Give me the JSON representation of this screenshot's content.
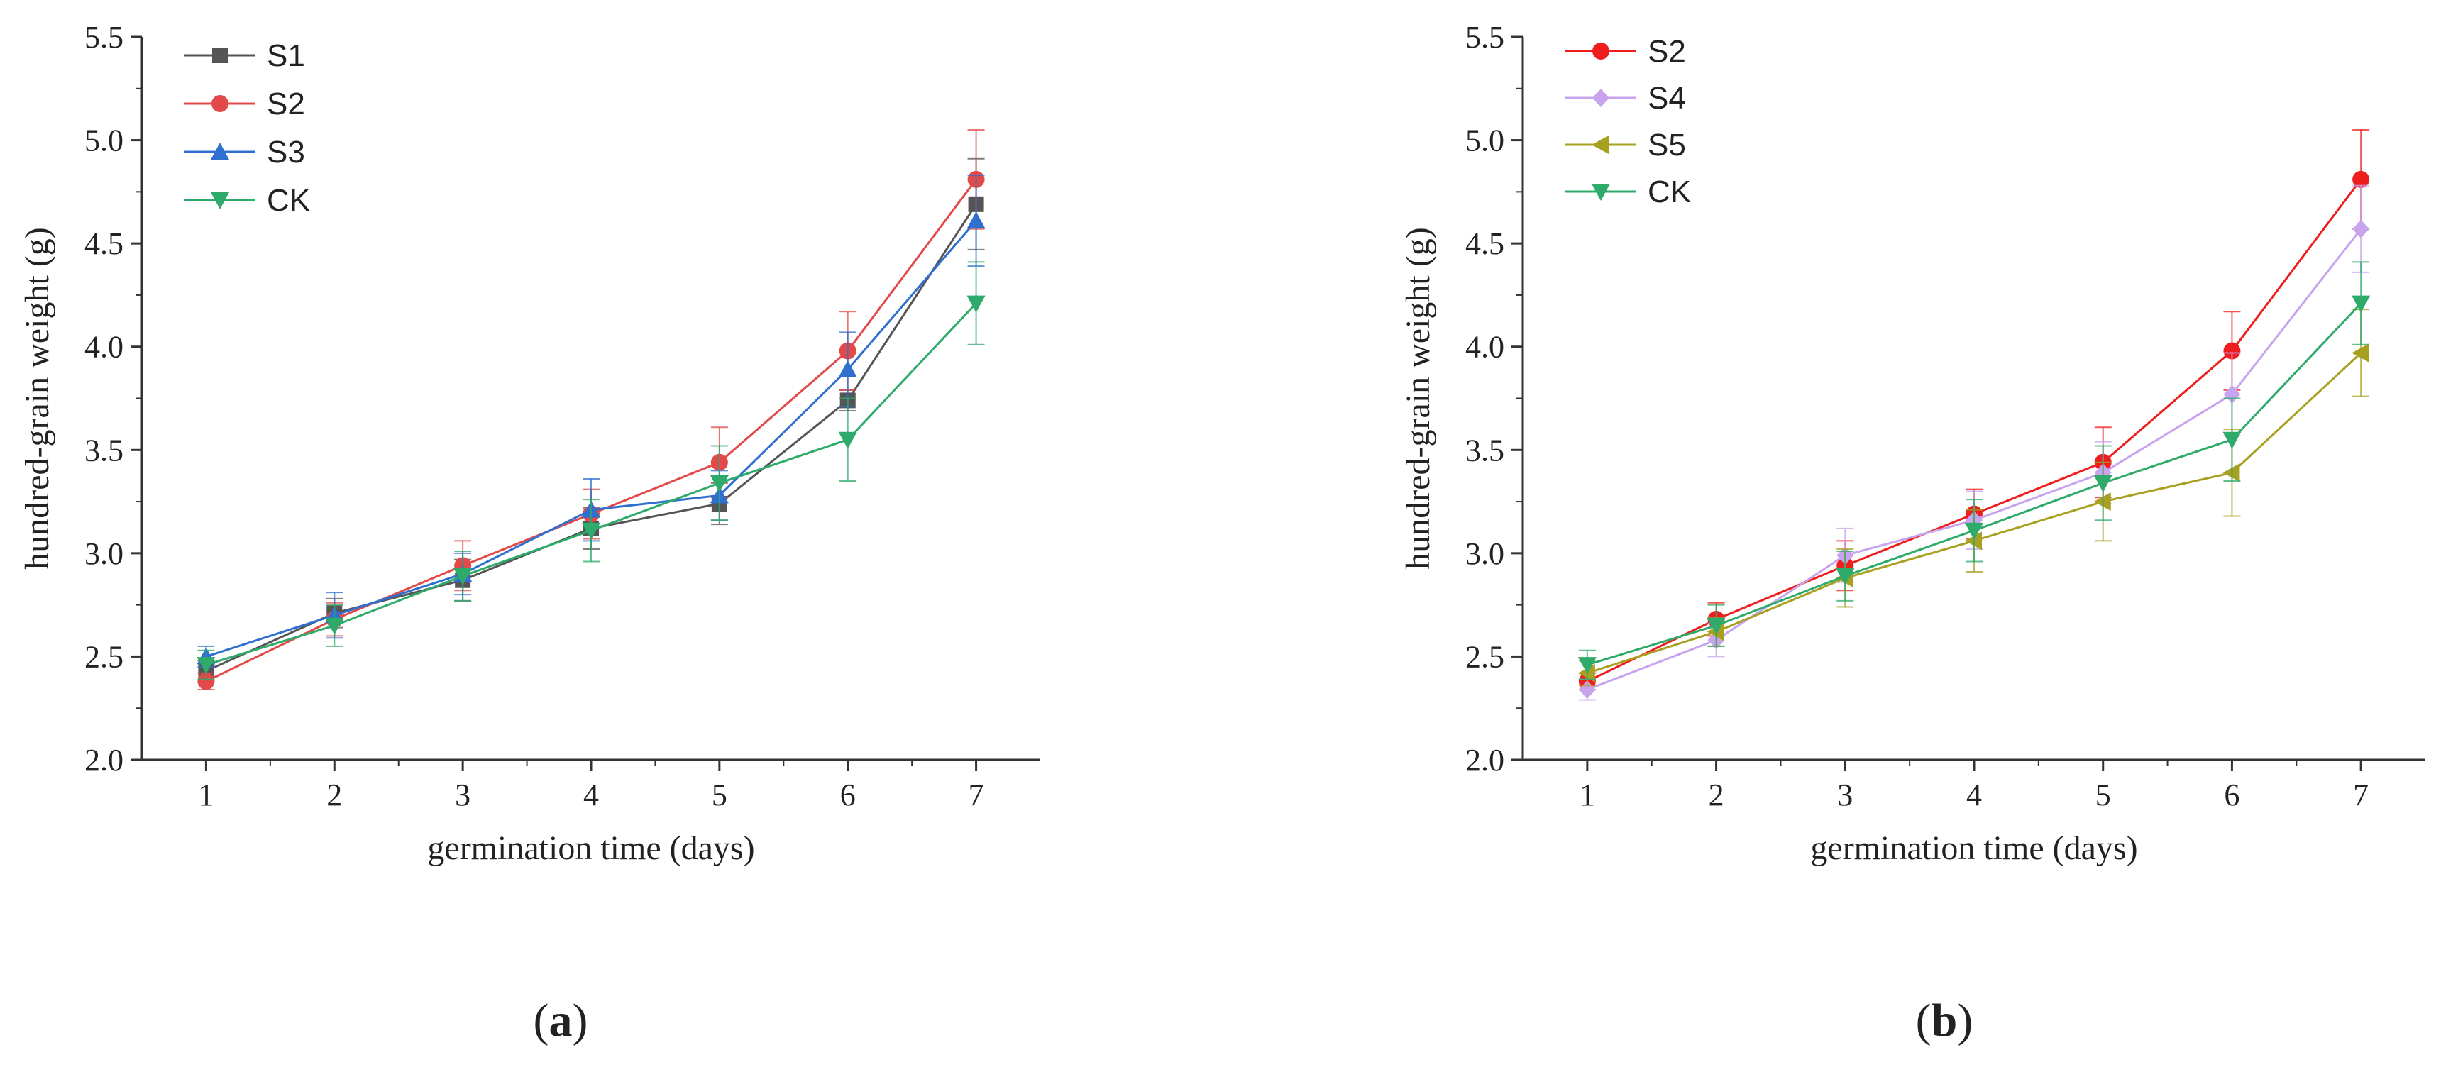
{
  "chart_data": [
    {
      "type": "line",
      "panel_label": "a",
      "xlabel": "germination time (days)",
      "ylabel": "hundred-grain weight (g)",
      "xlim": [
        0.5,
        7.5
      ],
      "ylim": [
        2.0,
        5.5
      ],
      "x": [
        1,
        2,
        3,
        4,
        5,
        6,
        7
      ],
      "xticks": [
        "1",
        "2",
        "3",
        "4",
        "5",
        "6",
        "7"
      ],
      "yticks": [
        "2.0",
        "2.5",
        "3.0",
        "3.5",
        "4.0",
        "4.5",
        "5.0",
        "5.5"
      ],
      "legend_position": "top-left",
      "series": [
        {
          "name": "S1",
          "color": "#555555",
          "marker": "square",
          "values": [
            2.43,
            2.71,
            2.87,
            3.12,
            3.24,
            3.74,
            4.69
          ],
          "errors": [
            0.05,
            0.07,
            0.1,
            0.1,
            0.1,
            0.05,
            0.22
          ]
        },
        {
          "name": "S2",
          "color": "#E24A4A",
          "marker": "circle",
          "values": [
            2.38,
            2.68,
            2.94,
            3.19,
            3.44,
            3.98,
            4.81
          ],
          "errors": [
            0.04,
            0.08,
            0.12,
            0.12,
            0.17,
            0.19,
            0.24
          ]
        },
        {
          "name": "S3",
          "color": "#2F6FD0",
          "marker": "triangle-up",
          "values": [
            2.5,
            2.7,
            2.9,
            3.21,
            3.28,
            3.89,
            4.61
          ],
          "errors": [
            0.05,
            0.11,
            0.1,
            0.15,
            0.12,
            0.18,
            0.22
          ]
        },
        {
          "name": "CK",
          "color": "#2EAA6A",
          "marker": "triangle-down",
          "values": [
            2.46,
            2.65,
            2.89,
            3.11,
            3.34,
            3.55,
            4.21
          ],
          "errors": [
            0.07,
            0.1,
            0.12,
            0.15,
            0.18,
            0.2,
            0.2
          ]
        }
      ]
    },
    {
      "type": "line",
      "panel_label": "b",
      "xlabel": "germination time (days)",
      "ylabel": "hundred-grain weight (g)",
      "xlim": [
        0.5,
        7.5
      ],
      "ylim": [
        2.0,
        5.5
      ],
      "x": [
        1,
        2,
        3,
        4,
        5,
        6,
        7
      ],
      "xticks": [
        "1",
        "2",
        "3",
        "4",
        "5",
        "6",
        "7"
      ],
      "yticks": [
        "2.0",
        "2.5",
        "3.0",
        "3.5",
        "4.0",
        "4.5",
        "5.0",
        "5.5"
      ],
      "legend_position": "top-left",
      "series": [
        {
          "name": "S2",
          "color": "#EE1E1E",
          "marker": "circle",
          "values": [
            2.38,
            2.68,
            2.94,
            3.19,
            3.44,
            3.98,
            4.81
          ],
          "errors": [
            0.04,
            0.08,
            0.12,
            0.12,
            0.17,
            0.19,
            0.24
          ]
        },
        {
          "name": "S4",
          "color": "#C8A4EE",
          "marker": "diamond",
          "values": [
            2.34,
            2.58,
            2.99,
            3.16,
            3.39,
            3.77,
            4.57
          ],
          "errors": [
            0.05,
            0.08,
            0.13,
            0.14,
            0.15,
            0.2,
            0.21
          ]
        },
        {
          "name": "S5",
          "color": "#A8A020",
          "marker": "triangle-left",
          "values": [
            2.42,
            2.62,
            2.88,
            3.06,
            3.25,
            3.39,
            3.97
          ],
          "errors": [
            0.06,
            0.07,
            0.14,
            0.15,
            0.19,
            0.21,
            0.21
          ]
        },
        {
          "name": "CK",
          "color": "#2EAA6A",
          "marker": "triangle-down",
          "values": [
            2.46,
            2.65,
            2.89,
            3.11,
            3.34,
            3.55,
            4.21
          ],
          "errors": [
            0.07,
            0.1,
            0.12,
            0.15,
            0.18,
            0.2,
            0.2
          ]
        }
      ]
    }
  ]
}
